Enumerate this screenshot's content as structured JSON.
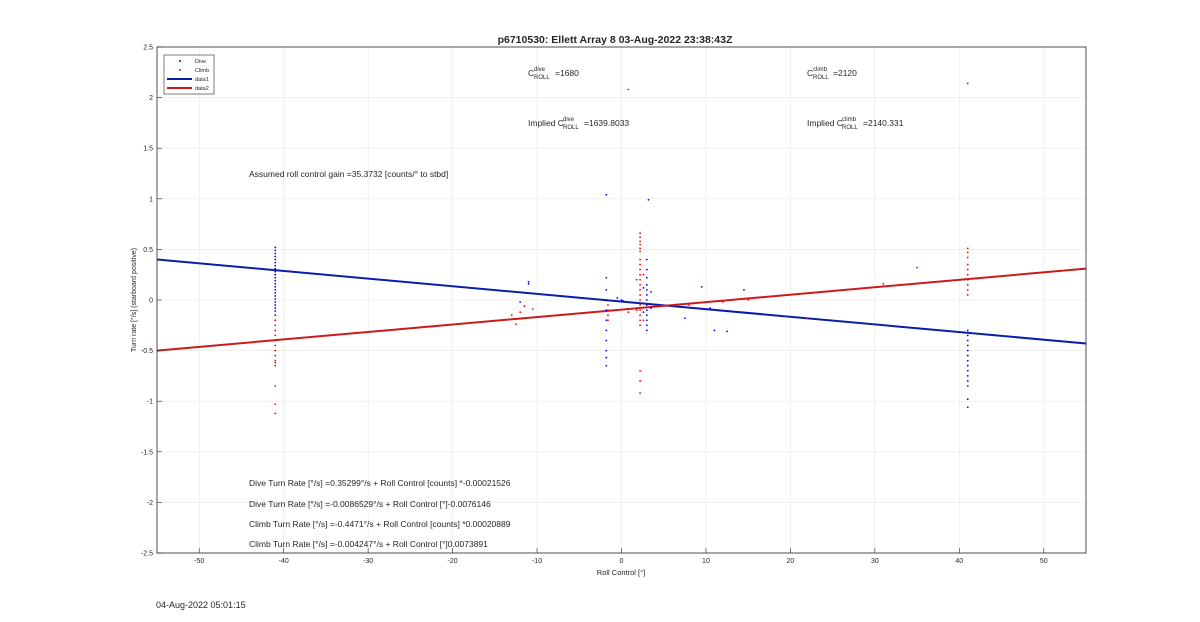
{
  "chart_data": {
    "type": "scatter",
    "title": "p6710530: Ellett Array 8 03-Aug-2022 23:38:43Z",
    "xlabel": "Roll Control [°]",
    "ylabel": "Turn rate [°/s] (starboard positive)",
    "xlim": [
      -55,
      55
    ],
    "ylim": [
      -2.5,
      2.5
    ],
    "xticks": [
      -50,
      -40,
      -30,
      -20,
      -10,
      0,
      10,
      20,
      30,
      40,
      50
    ],
    "yticks": [
      -2.5,
      -2,
      -1.5,
      -1,
      -0.5,
      0,
      0.5,
      1,
      1.5,
      2,
      2.5
    ],
    "grid": true,
    "legend": {
      "placement": "top-left",
      "entries": [
        {
          "label": "Dive",
          "kind": "marker",
          "color": "#0000ff"
        },
        {
          "label": "Climb",
          "kind": "marker",
          "color": "#ff0000"
        },
        {
          "label": "data1",
          "kind": "line",
          "color": "#0a1fa8"
        },
        {
          "label": "data2",
          "kind": "line",
          "color": "#cc1a1a"
        }
      ]
    },
    "lines": [
      {
        "name": "data1",
        "color": "#0a1fa8",
        "x": [
          -55,
          55
        ],
        "y": [
          0.4,
          -0.43
        ]
      },
      {
        "name": "data2",
        "color": "#cc1a1a",
        "x": [
          -55,
          55
        ],
        "y": [
          -0.5,
          0.31
        ]
      }
    ],
    "series": [
      {
        "name": "Dive",
        "color": "#0000ff",
        "points": [
          [
            -41,
            0.52
          ],
          [
            -41,
            0.49
          ],
          [
            -41,
            0.46
          ],
          [
            -41,
            0.43
          ],
          [
            -41,
            0.4
          ],
          [
            -41,
            0.37
          ],
          [
            -41,
            0.34
          ],
          [
            -41,
            0.31
          ],
          [
            -41,
            0.28
          ],
          [
            -41,
            0.25
          ],
          [
            -41,
            0.22
          ],
          [
            -41,
            0.19
          ],
          [
            -41,
            0.16
          ],
          [
            -41,
            0.13
          ],
          [
            -41,
            0.1
          ],
          [
            -41,
            0.07
          ],
          [
            -41,
            0.04
          ],
          [
            -41,
            0.01
          ],
          [
            -41,
            -0.02
          ],
          [
            -41,
            -0.05
          ],
          [
            -41,
            -0.08
          ],
          [
            -41,
            -0.11
          ],
          [
            -41,
            -0.15
          ],
          [
            -41,
            -0.2
          ],
          [
            -11,
            0.18
          ],
          [
            -11,
            0.16
          ],
          [
            -12,
            -0.02
          ],
          [
            -1.8,
            1.04
          ],
          [
            -1.8,
            0.22
          ],
          [
            -1.8,
            0.1
          ],
          [
            -1.8,
            0.0
          ],
          [
            -1.8,
            -0.1
          ],
          [
            -1.8,
            -0.2
          ],
          [
            -1.8,
            -0.3
          ],
          [
            -1.8,
            -0.4
          ],
          [
            -1.8,
            -0.5
          ],
          [
            -1.8,
            -0.57
          ],
          [
            -1.8,
            -0.65
          ],
          [
            -0.5,
            0.02
          ],
          [
            0,
            0.0
          ],
          [
            0.2,
            -0.01
          ],
          [
            3.2,
            0.99
          ],
          [
            3.0,
            0.4
          ],
          [
            3.0,
            0.3
          ],
          [
            3.0,
            0.22
          ],
          [
            3.0,
            0.15
          ],
          [
            3.0,
            0.1
          ],
          [
            3.0,
            0.05
          ],
          [
            3.0,
            0.0
          ],
          [
            3.0,
            -0.05
          ],
          [
            3.0,
            -0.1
          ],
          [
            3.0,
            -0.15
          ],
          [
            3.0,
            -0.2
          ],
          [
            3.0,
            -0.25
          ],
          [
            3.0,
            -0.3
          ],
          [
            3.5,
            0.08
          ],
          [
            3.5,
            -0.08
          ],
          [
            2.6,
            0.12
          ],
          [
            2.6,
            -0.12
          ],
          [
            7.5,
            -0.18
          ],
          [
            9.5,
            0.13
          ],
          [
            10.5,
            -0.08
          ],
          [
            11,
            -0.3
          ],
          [
            12.5,
            -0.31
          ],
          [
            14.5,
            0.1
          ],
          [
            41,
            -0.3
          ],
          [
            41,
            -0.35
          ],
          [
            41,
            -0.4
          ],
          [
            41,
            -0.45
          ],
          [
            41,
            -0.5
          ],
          [
            41,
            -0.55
          ],
          [
            41,
            -0.6
          ],
          [
            41,
            -0.65
          ],
          [
            41,
            -0.7
          ],
          [
            41,
            -0.75
          ],
          [
            41,
            -0.8
          ],
          [
            41,
            -0.85
          ],
          [
            41,
            -0.98
          ],
          [
            41,
            -1.06
          ]
        ]
      },
      {
        "name": "Climb",
        "color": "#ff0000",
        "points": [
          [
            -41,
            -0.2
          ],
          [
            -41,
            -0.25
          ],
          [
            -41,
            -0.3
          ],
          [
            -41,
            -0.35
          ],
          [
            -41,
            -0.4
          ],
          [
            -41,
            -0.45
          ],
          [
            -41,
            -0.5
          ],
          [
            -41,
            -0.55
          ],
          [
            -41,
            -0.6
          ],
          [
            -41,
            -0.65
          ],
          [
            -41,
            -0.85
          ],
          [
            -41,
            -1.03
          ],
          [
            -41,
            -1.12
          ],
          [
            -41,
            -0.62
          ],
          [
            -12.5,
            -0.24
          ],
          [
            -12,
            -0.12
          ],
          [
            -11.5,
            -0.06
          ],
          [
            -10.5,
            -0.09
          ],
          [
            -13,
            -0.15
          ],
          [
            -1.6,
            -0.05
          ],
          [
            -1.6,
            -0.1
          ],
          [
            -1.6,
            -0.15
          ],
          [
            -1.6,
            -0.2
          ],
          [
            0.8,
            2.08
          ],
          [
            0.8,
            -0.12
          ],
          [
            2.2,
            0.66
          ],
          [
            2.2,
            0.62
          ],
          [
            2.2,
            0.58
          ],
          [
            2.2,
            0.55
          ],
          [
            2.2,
            0.51
          ],
          [
            2.2,
            0.48
          ],
          [
            2.2,
            0.4
          ],
          [
            2.2,
            0.35
          ],
          [
            2.2,
            0.3
          ],
          [
            2.2,
            0.25
          ],
          [
            2.2,
            0.2
          ],
          [
            2.2,
            0.15
          ],
          [
            2.2,
            0.1
          ],
          [
            2.2,
            0.05
          ],
          [
            2.2,
            0.0
          ],
          [
            2.2,
            -0.05
          ],
          [
            2.2,
            -0.1
          ],
          [
            2.2,
            -0.15
          ],
          [
            2.2,
            -0.2
          ],
          [
            2.2,
            -0.25
          ],
          [
            2.2,
            -0.7
          ],
          [
            2.2,
            -0.8
          ],
          [
            2.2,
            -0.92
          ],
          [
            1.8,
            0.2
          ],
          [
            1.8,
            -0.1
          ],
          [
            2.6,
            0.25
          ],
          [
            2.6,
            -0.2
          ],
          [
            8,
            -0.05
          ],
          [
            12,
            -0.02
          ],
          [
            15,
            0.0
          ],
          [
            22,
            -0.18
          ],
          [
            31,
            0.16
          ],
          [
            35,
            0.32
          ],
          [
            41,
            0.51
          ],
          [
            41,
            0.47
          ],
          [
            41,
            0.42
          ],
          [
            41,
            0.35
          ],
          [
            41,
            0.3
          ],
          [
            41,
            0.25
          ],
          [
            41,
            0.2
          ],
          [
            41,
            0.15
          ],
          [
            41,
            0.1
          ],
          [
            41,
            0.05
          ],
          [
            41,
            2.14
          ]
        ]
      }
    ],
    "annotations": {
      "c_roll_dive": {
        "base": "C",
        "sup": "dive",
        "sub": "ROLL",
        "value": "=1680"
      },
      "c_roll_climb": {
        "base": "C",
        "sup": "climb",
        "sub": "ROLL",
        "value": "=2120"
      },
      "implied_dive": {
        "prefix": "Implied C",
        "sup": "dive",
        "sub": "ROLL",
        "value": "=1639.8033"
      },
      "implied_climb": {
        "prefix": "Implied C",
        "sup": "climb",
        "sub": "ROLL",
        "value": "=2140.331"
      },
      "gain": "Assumed roll control gain =35.3732 [counts/° to stbd]",
      "eq1": "Dive Turn Rate [°/s] =0.35299°/s + Roll Control [counts] *-0.00021526",
      "eq2": "Dive Turn Rate [°/s] =-0.0086529°/s + Roll Control [°]-0.0076146",
      "eq3": "Climb Turn Rate [°/s] =-0.4471°/s + Roll Control [counts] *0.00020889",
      "eq4": "Climb Turn Rate [°/s] =-0.004247°/s + Roll Control [°]0.0073891"
    }
  },
  "footer": {
    "timestamp": "04-Aug-2022 05:01:15"
  }
}
